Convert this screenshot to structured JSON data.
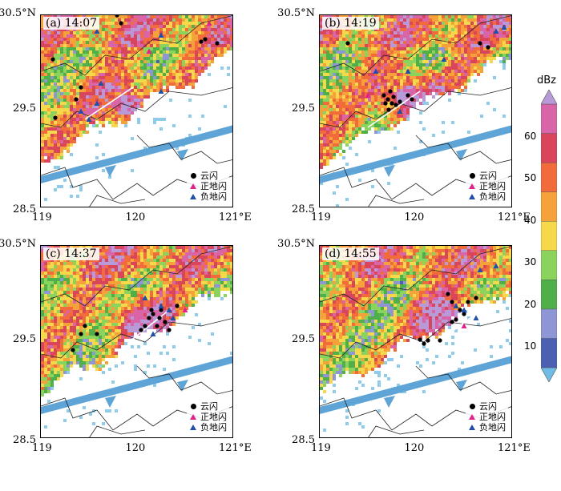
{
  "axes": {
    "lat_labels": [
      "30.5°N",
      "29.5",
      "28.5"
    ],
    "lon_labels": [
      "119",
      "120",
      "121°E"
    ]
  },
  "panels": [
    {
      "label": "(a)  14:07"
    },
    {
      "label": "(b)  14:19"
    },
    {
      "label": "(c)  14:37"
    },
    {
      "label": "(d)  14:55"
    }
  ],
  "legend": {
    "cloud_flash": "云闪",
    "positive_cg": "正地闪",
    "negative_cg": "负地闪",
    "colors": {
      "cloud_flash": "#000000",
      "positive_cg": "#e0228c",
      "negative_cg": "#1f4fa8"
    }
  },
  "colorbar": {
    "unit": "dBz",
    "ticks": [
      "60",
      "50",
      "40",
      "30",
      "20",
      "10"
    ],
    "colors": [
      "#6fbde6",
      "#4b5fb3",
      "#8f96d6",
      "#4fb04a",
      "#8ad35c",
      "#f6d94a",
      "#f6a23a",
      "#f26b3a",
      "#d9455a",
      "#d964a8",
      "#b99ad8"
    ]
  }
}
